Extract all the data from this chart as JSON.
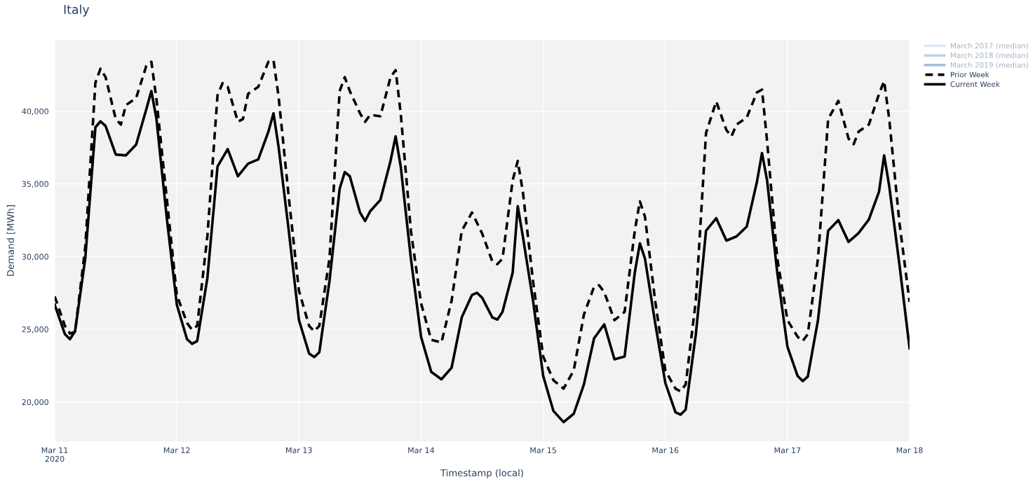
{
  "chart_data": {
    "type": "line",
    "title": "Italy",
    "xlabel": "Timestamp (local)",
    "ylabel": "Demand [MWh]",
    "xlim": [
      "2020-03-11",
      "2020-03-18"
    ],
    "xticks": [
      {
        "value": "2020-03-11",
        "label": "Mar 11\n2020"
      },
      {
        "value": "2020-03-12",
        "label": "Mar 12"
      },
      {
        "value": "2020-03-13",
        "label": "Mar 13"
      },
      {
        "value": "2020-03-14",
        "label": "Mar 14"
      },
      {
        "value": "2020-03-15",
        "label": "Mar 15"
      },
      {
        "value": "2020-03-16",
        "label": "Mar 16"
      },
      {
        "value": "2020-03-17",
        "label": "Mar 17"
      },
      {
        "value": "2020-03-18",
        "label": "Mar 18"
      }
    ],
    "ylim": [
      17300,
      44900
    ],
    "yticks": [
      {
        "value": 20000,
        "label": "20,000"
      },
      {
        "value": 25000,
        "label": "25,000"
      },
      {
        "value": 30000,
        "label": "30,000"
      },
      {
        "value": 35000,
        "label": "35,000"
      },
      {
        "value": 40000,
        "label": "40,000"
      }
    ],
    "grid": true,
    "legend": "top right",
    "series": [
      {
        "name": "March 2017 (median)",
        "color": "#dde8f3",
        "line_style": "solid"
      },
      {
        "name": "March 2018 (median)",
        "color": "#bcd4eb",
        "line_style": "solid"
      },
      {
        "name": "March 2019 (median)",
        "color": "#9fc0e2",
        "line_style": "solid"
      },
      {
        "name": "Prior Week",
        "color": "#000000",
        "line_style": "dashed",
        "x": [
          "2020-03-11T00:00",
          "2020-03-11T02:00",
          "2020-03-11T03:00",
          "2020-03-11T04:00",
          "2020-03-11T06:00",
          "2020-03-11T08:00",
          "2020-03-11T09:00",
          "2020-03-11T10:00",
          "2020-03-11T12:00",
          "2020-03-11T13:00",
          "2020-03-11T14:00",
          "2020-03-11T16:00",
          "2020-03-11T18:00",
          "2020-03-11T19:00",
          "2020-03-11T20:00",
          "2020-03-11T22:00",
          "2020-03-12T00:00",
          "2020-03-12T02:00",
          "2020-03-12T03:00",
          "2020-03-12T04:00",
          "2020-03-12T06:00",
          "2020-03-12T08:00",
          "2020-03-12T09:00",
          "2020-03-12T10:00",
          "2020-03-12T12:00",
          "2020-03-12T13:00",
          "2020-03-12T14:00",
          "2020-03-12T16:00",
          "2020-03-12T18:00",
          "2020-03-12T19:00",
          "2020-03-12T20:00",
          "2020-03-12T22:00",
          "2020-03-13T00:00",
          "2020-03-13T02:00",
          "2020-03-13T03:00",
          "2020-03-13T04:00",
          "2020-03-13T06:00",
          "2020-03-13T08:00",
          "2020-03-13T09:00",
          "2020-03-13T10:00",
          "2020-03-13T12:00",
          "2020-03-13T13:00",
          "2020-03-13T14:00",
          "2020-03-13T16:00",
          "2020-03-13T18:00",
          "2020-03-13T19:00",
          "2020-03-13T20:00",
          "2020-03-13T22:00",
          "2020-03-14T00:00",
          "2020-03-14T02:00",
          "2020-03-14T04:00",
          "2020-03-14T06:00",
          "2020-03-14T08:00",
          "2020-03-14T10:00",
          "2020-03-14T12:00",
          "2020-03-14T14:00",
          "2020-03-14T15:00",
          "2020-03-14T16:00",
          "2020-03-14T18:00",
          "2020-03-14T19:00",
          "2020-03-14T20:00",
          "2020-03-14T22:00",
          "2020-03-15T00:00",
          "2020-03-15T02:00",
          "2020-03-15T04:00",
          "2020-03-15T06:00",
          "2020-03-15T08:00",
          "2020-03-15T10:00",
          "2020-03-15T11:00",
          "2020-03-15T12:00",
          "2020-03-15T14:00",
          "2020-03-15T16:00",
          "2020-03-15T18:00",
          "2020-03-15T19:00",
          "2020-03-15T20:00",
          "2020-03-15T22:00",
          "2020-03-16T00:00",
          "2020-03-16T02:00",
          "2020-03-16T03:00",
          "2020-03-16T04:00",
          "2020-03-16T06:00",
          "2020-03-16T08:00",
          "2020-03-16T10:00",
          "2020-03-16T12:00",
          "2020-03-16T13:00",
          "2020-03-16T14:00",
          "2020-03-16T16:00",
          "2020-03-16T18:00",
          "2020-03-16T19:00",
          "2020-03-16T20:00",
          "2020-03-16T22:00",
          "2020-03-17T00:00",
          "2020-03-17T02:00",
          "2020-03-17T03:00",
          "2020-03-17T04:00",
          "2020-03-17T06:00",
          "2020-03-17T08:00",
          "2020-03-17T10:00",
          "2020-03-17T12:00",
          "2020-03-17T13:00",
          "2020-03-17T14:00",
          "2020-03-17T16:00",
          "2020-03-17T18:00",
          "2020-03-17T19:00",
          "2020-03-17T20:00",
          "2020-03-17T22:00",
          "2020-03-18T00:00"
        ],
        "values": [
          27260,
          25240,
          24710,
          24820,
          30630,
          41960,
          42920,
          42340,
          39460,
          39080,
          40420,
          40900,
          43110,
          43400,
          40810,
          34080,
          27360,
          25440,
          24960,
          25240,
          31390,
          41100,
          41930,
          41670,
          39270,
          39460,
          41190,
          41670,
          43400,
          43500,
          41000,
          34080,
          27650,
          25240,
          24860,
          25240,
          29860,
          41380,
          42340,
          41380,
          39850,
          39270,
          39750,
          39650,
          42340,
          42820,
          39850,
          31780,
          26780,
          24280,
          24090,
          26970,
          31780,
          33030,
          31590,
          29670,
          29480,
          29860,
          35240,
          36580,
          34470,
          28320,
          23130,
          21500,
          20920,
          22170,
          26010,
          27930,
          28030,
          27550,
          25630,
          26200,
          31780,
          33800,
          32740,
          26970,
          22170,
          20920,
          20730,
          21210,
          26970,
          38500,
          40670,
          38700,
          38270,
          39080,
          39560,
          41290,
          41480,
          37930,
          29860,
          25630,
          24480,
          24190,
          24670,
          29860,
          39460,
          40710,
          38120,
          37730,
          38600,
          39080,
          41190,
          42070,
          39460,
          32350,
          26880
        ]
      },
      {
        "name": "Current Week",
        "color": "#000000",
        "line_style": "solid",
        "x": [
          "2020-03-11T00:00",
          "2020-03-11T02:00",
          "2020-03-11T03:00",
          "2020-03-11T04:00",
          "2020-03-11T06:00",
          "2020-03-11T08:00",
          "2020-03-11T09:00",
          "2020-03-11T10:00",
          "2020-03-11T12:00",
          "2020-03-11T14:00",
          "2020-03-11T16:00",
          "2020-03-11T18:00",
          "2020-03-11T19:00",
          "2020-03-11T20:00",
          "2020-03-11T22:00",
          "2020-03-12T00:00",
          "2020-03-12T02:00",
          "2020-03-12T03:00",
          "2020-03-12T04:00",
          "2020-03-12T06:00",
          "2020-03-12T08:00",
          "2020-03-12T10:00",
          "2020-03-12T12:00",
          "2020-03-12T14:00",
          "2020-03-12T16:00",
          "2020-03-12T18:00",
          "2020-03-12T19:00",
          "2020-03-12T20:00",
          "2020-03-12T22:00",
          "2020-03-13T00:00",
          "2020-03-13T02:00",
          "2020-03-13T03:00",
          "2020-03-13T04:00",
          "2020-03-13T06:00",
          "2020-03-13T08:00",
          "2020-03-13T09:00",
          "2020-03-13T10:00",
          "2020-03-13T12:00",
          "2020-03-13T13:00",
          "2020-03-13T14:00",
          "2020-03-13T16:00",
          "2020-03-13T18:00",
          "2020-03-13T19:00",
          "2020-03-13T20:00",
          "2020-03-13T22:00",
          "2020-03-14T00:00",
          "2020-03-14T02:00",
          "2020-03-14T04:00",
          "2020-03-14T06:00",
          "2020-03-14T08:00",
          "2020-03-14T10:00",
          "2020-03-14T11:00",
          "2020-03-14T12:00",
          "2020-03-14T14:00",
          "2020-03-14T15:00",
          "2020-03-14T16:00",
          "2020-03-14T18:00",
          "2020-03-14T19:00",
          "2020-03-14T20:00",
          "2020-03-14T22:00",
          "2020-03-15T00:00",
          "2020-03-15T02:00",
          "2020-03-15T04:00",
          "2020-03-15T06:00",
          "2020-03-15T08:00",
          "2020-03-15T10:00",
          "2020-03-15T12:00",
          "2020-03-15T14:00",
          "2020-03-15T16:00",
          "2020-03-15T18:00",
          "2020-03-15T19:00",
          "2020-03-15T20:00",
          "2020-03-15T22:00",
          "2020-03-16T00:00",
          "2020-03-16T02:00",
          "2020-03-16T03:00",
          "2020-03-16T04:00",
          "2020-03-16T06:00",
          "2020-03-16T08:00",
          "2020-03-16T10:00",
          "2020-03-16T12:00",
          "2020-03-16T14:00",
          "2020-03-16T16:00",
          "2020-03-16T18:00",
          "2020-03-16T19:00",
          "2020-03-16T20:00",
          "2020-03-16T22:00",
          "2020-03-17T00:00",
          "2020-03-17T02:00",
          "2020-03-17T03:00",
          "2020-03-17T04:00",
          "2020-03-17T06:00",
          "2020-03-17T08:00",
          "2020-03-17T10:00",
          "2020-03-17T12:00",
          "2020-03-17T14:00",
          "2020-03-17T16:00",
          "2020-03-17T18:00",
          "2020-03-17T19:00",
          "2020-03-17T20:00",
          "2020-03-17T22:00",
          "2020-03-18T00:00"
        ],
        "values": [
          26690,
          24670,
          24320,
          24860,
          29860,
          38890,
          39300,
          38980,
          37020,
          36960,
          37700,
          40130,
          41380,
          39460,
          32740,
          26690,
          24320,
          24000,
          24190,
          28510,
          36200,
          37390,
          35520,
          36390,
          36680,
          38600,
          39850,
          37540,
          31780,
          25630,
          23330,
          23090,
          23420,
          28320,
          34660,
          35810,
          35520,
          33030,
          32450,
          33120,
          33890,
          36580,
          38270,
          36200,
          29860,
          24480,
          22070,
          21560,
          22360,
          25820,
          27360,
          27510,
          27170,
          25820,
          25670,
          26200,
          28900,
          33470,
          31390,
          26970,
          21790,
          19390,
          18620,
          19190,
          21210,
          24380,
          25340,
          22940,
          23130,
          28900,
          30910,
          29860,
          25440,
          21310,
          19290,
          19130,
          19480,
          24670,
          31780,
          32640,
          31100,
          31390,
          32060,
          35140,
          37120,
          35240,
          28900,
          23800,
          21790,
          21440,
          21750,
          25630,
          31780,
          32510,
          31010,
          31620,
          32550,
          34470,
          36960,
          34850,
          29470,
          23700
        ]
      }
    ]
  }
}
